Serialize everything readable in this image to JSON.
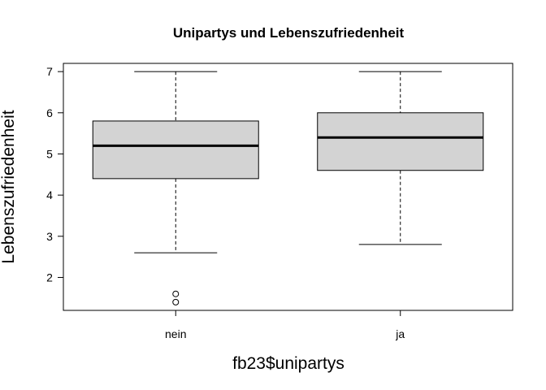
{
  "chart_data": {
    "type": "boxplot",
    "title": "Unipartys und Lebenszufriedenheit",
    "xlabel": "fb23$unipartys",
    "ylabel": "Lebenszufriedenheit",
    "categories": [
      "nein",
      "ja"
    ],
    "ylim": [
      1.2,
      7.2
    ],
    "yticks": [
      2,
      3,
      4,
      5,
      6,
      7
    ],
    "grid": false,
    "boxes": [
      {
        "category": "nein",
        "whisker_low": 2.6,
        "q1": 4.4,
        "median": 5.2,
        "q3": 5.8,
        "whisker_high": 7.0,
        "outliers": [
          1.6,
          1.4
        ]
      },
      {
        "category": "ja",
        "whisker_low": 2.8,
        "q1": 4.6,
        "median": 5.4,
        "q3": 6.0,
        "whisker_high": 7.0,
        "outliers": []
      }
    ],
    "colors": {
      "box_fill": "#d3d3d3",
      "stroke": "#000000"
    }
  }
}
